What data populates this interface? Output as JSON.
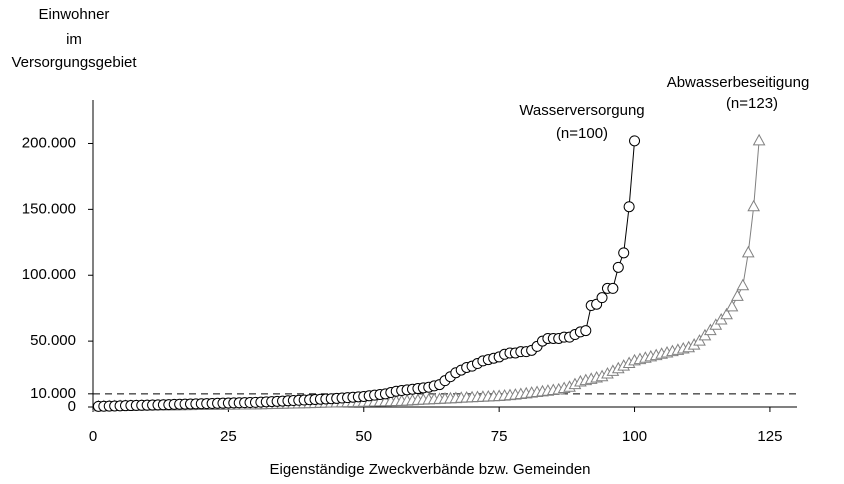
{
  "chart_data": {
    "type": "line",
    "ylabel": [
      "Einwohner",
      "im",
      "Versorgungsgebiet"
    ],
    "xlabel": "Eigenständige Zweckverbände bzw. Gemeinden",
    "xlim": [
      0,
      130
    ],
    "xticks": [
      0,
      25,
      50,
      75,
      100,
      125
    ],
    "ylim": [
      0,
      233000
    ],
    "yticks": [
      0,
      {
        "value": 10000,
        "label": "10.000"
      },
      {
        "value": 50000,
        "label": "50.000"
      },
      {
        "value": 100000,
        "label": "100.000"
      },
      {
        "value": 150000,
        "label": "150.000"
      },
      {
        "value": 200000,
        "label": "200.000"
      }
    ],
    "hline": 10000,
    "series": [
      {
        "name": "Wasserversorgung",
        "count_label": "(n=100)",
        "color": "#000000",
        "marker": "circle",
        "x": [
          1,
          2,
          3,
          4,
          5,
          6,
          7,
          8,
          9,
          10,
          11,
          12,
          13,
          14,
          15,
          16,
          17,
          18,
          19,
          20,
          21,
          22,
          23,
          24,
          25,
          26,
          27,
          28,
          29,
          30,
          31,
          32,
          33,
          34,
          35,
          36,
          37,
          38,
          39,
          40,
          41,
          42,
          43,
          44,
          45,
          46,
          47,
          48,
          49,
          50,
          51,
          52,
          53,
          54,
          55,
          56,
          57,
          58,
          59,
          60,
          61,
          62,
          63,
          64,
          65,
          66,
          67,
          68,
          69,
          70,
          71,
          72,
          73,
          74,
          75,
          76,
          77,
          78,
          79,
          80,
          81,
          82,
          83,
          84,
          85,
          86,
          87,
          88,
          89,
          90,
          91,
          92,
          93,
          94,
          95,
          96,
          97,
          98,
          99,
          100
        ],
        "values": [
          500,
          600,
          700,
          800,
          900,
          1000,
          1100,
          1200,
          1300,
          1400,
          1500,
          1600,
          1700,
          1800,
          2000,
          2100,
          2200,
          2300,
          2400,
          2500,
          2600,
          2700,
          2800,
          2900,
          3000,
          3100,
          3200,
          3300,
          3400,
          3500,
          3700,
          3900,
          4100,
          4300,
          4500,
          4700,
          4900,
          5100,
          5300,
          5500,
          5700,
          5900,
          6100,
          6300,
          6500,
          6800,
          7100,
          7400,
          7700,
          8000,
          8500,
          9000,
          9500,
          10000,
          11000,
          12000,
          12500,
          13000,
          13500,
          14000,
          14500,
          15000,
          16000,
          17000,
          20000,
          23000,
          26000,
          28000,
          30000,
          31000,
          33000,
          35000,
          36000,
          37000,
          38000,
          40000,
          41000,
          41000,
          42000,
          42000,
          43000,
          46000,
          50000,
          52000,
          52000,
          52000,
          53000,
          53000,
          55000,
          57000,
          58000,
          77000,
          78000,
          83000,
          90000,
          90000,
          106000,
          117000,
          152000,
          202000
        ]
      },
      {
        "name": "Abwasserbeseitigung",
        "count_label": "(n=123)",
        "color": "#808080",
        "marker": "triangle",
        "x": [
          1,
          2,
          3,
          4,
          5,
          6,
          7,
          8,
          9,
          10,
          11,
          12,
          13,
          14,
          15,
          16,
          17,
          18,
          19,
          20,
          21,
          22,
          23,
          24,
          25,
          26,
          27,
          28,
          29,
          30,
          31,
          32,
          33,
          34,
          35,
          36,
          37,
          38,
          39,
          40,
          41,
          42,
          43,
          44,
          45,
          46,
          47,
          48,
          49,
          50,
          51,
          52,
          53,
          54,
          55,
          56,
          57,
          58,
          59,
          60,
          61,
          62,
          63,
          64,
          65,
          66,
          67,
          68,
          69,
          70,
          71,
          72,
          73,
          74,
          75,
          76,
          77,
          78,
          79,
          80,
          81,
          82,
          83,
          84,
          85,
          86,
          87,
          88,
          89,
          90,
          91,
          92,
          93,
          94,
          95,
          96,
          97,
          98,
          99,
          100,
          101,
          102,
          103,
          104,
          105,
          106,
          107,
          108,
          109,
          110,
          111,
          112,
          113,
          114,
          115,
          116,
          117,
          118,
          119,
          120,
          121,
          122,
          123
        ],
        "values": [
          200,
          250,
          300,
          350,
          400,
          450,
          500,
          550,
          600,
          650,
          700,
          750,
          800,
          850,
          900,
          950,
          1000,
          1050,
          1100,
          1150,
          1200,
          1250,
          1300,
          1350,
          1400,
          1450,
          1500,
          1550,
          1600,
          1650,
          1700,
          1800,
          1900,
          2000,
          2100,
          2200,
          2300,
          2400,
          2500,
          2600,
          2700,
          2800,
          2900,
          3000,
          3100,
          3200,
          3300,
          3400,
          3500,
          3600,
          3700,
          3800,
          3900,
          4000,
          4100,
          4200,
          4300,
          4500,
          4700,
          5000,
          5200,
          5400,
          5600,
          5800,
          6000,
          6200,
          6400,
          6600,
          6800,
          7000,
          7200,
          7400,
          7600,
          7800,
          8000,
          8300,
          8600,
          9000,
          9500,
          10000,
          10500,
          11000,
          11500,
          12000,
          12500,
          13000,
          14000,
          15000,
          17000,
          19000,
          20000,
          21000,
          22000,
          23000,
          25000,
          27000,
          29000,
          31000,
          33000,
          35000,
          36000,
          37000,
          38000,
          39000,
          40000,
          41000,
          42000,
          43000,
          44000,
          45000,
          47000,
          50000,
          54000,
          58000,
          62000,
          66000,
          70000,
          76000,
          84000,
          92000,
          117000,
          152000,
          202000
        ]
      }
    ]
  }
}
